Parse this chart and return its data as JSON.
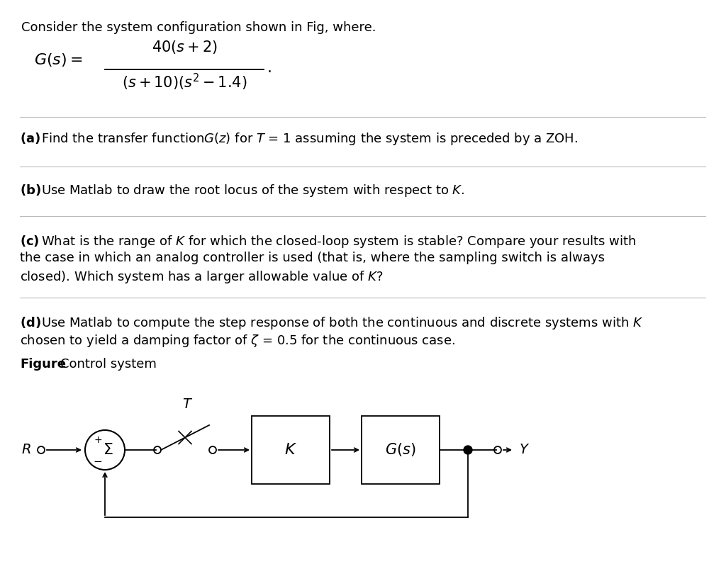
{
  "bg_color": "#ffffff",
  "text_color": "#000000",
  "divider_color": "#bbbbbb",
  "font_size": 13,
  "intro_text": "Consider the system configuration shown in Fig, where.",
  "figure_label": "Figure",
  "figure_caption": " Control system"
}
